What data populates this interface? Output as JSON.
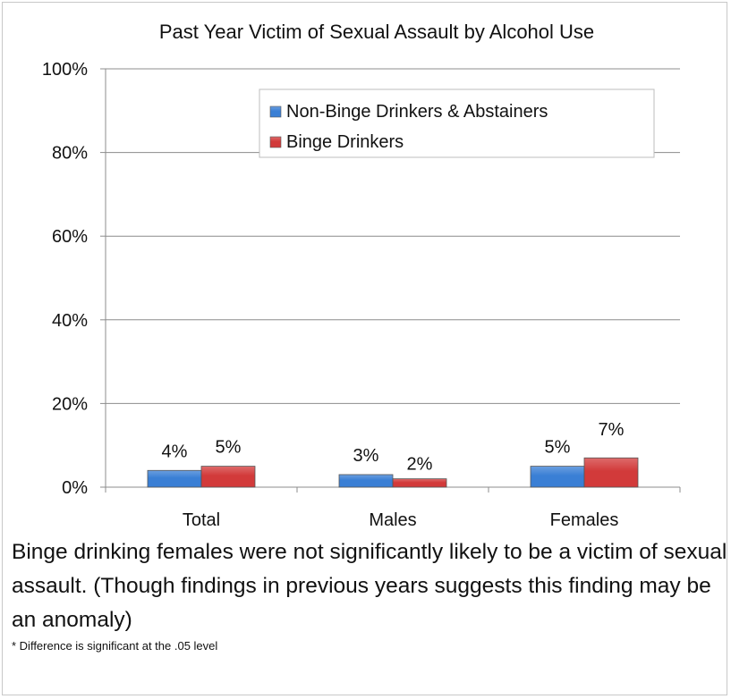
{
  "chart_data": {
    "type": "bar",
    "title": "Past Year Victim of Sexual Assault by Alcohol Use",
    "categories": [
      "Total",
      "Males",
      "Females"
    ],
    "series": [
      {
        "name": "Non-Binge Drinkers & Abstainers",
        "values": [
          4,
          3,
          5
        ],
        "labels": [
          "4%",
          "3%",
          "5%"
        ],
        "color": "#3a7fd5"
      },
      {
        "name": "Binge Drinkers",
        "values": [
          5,
          2,
          7
        ],
        "labels": [
          "5%",
          "2%",
          "7%"
        ],
        "color": "#d23a3a"
      }
    ],
    "ylim": [
      0,
      100
    ],
    "yticks": [
      0,
      20,
      40,
      60,
      80,
      100
    ],
    "ytick_labels": [
      "0%",
      "20%",
      "40%",
      "60%",
      "80%",
      "100%"
    ],
    "xlabel": "",
    "ylabel": "",
    "grid": true,
    "legend_position": "top-right"
  },
  "caption": "Binge drinking females were not significantly likely to be a victim of sexual assault. (Though findings in previous years suggests this finding may be an anomaly)",
  "footnote": "* Difference is significant at the .05 level"
}
